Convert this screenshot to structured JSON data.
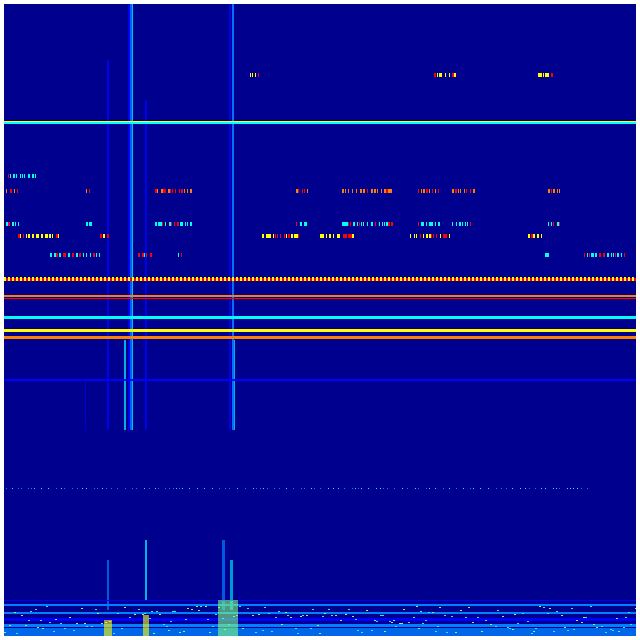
{
  "image": {
    "kind": "heatmap",
    "colormap": "jet",
    "colors": {
      "background": "#00008f",
      "blue": "#0000ff",
      "light_blue": "#0080ff",
      "cyan": "#00ffff",
      "green": "#80ff80",
      "yellow": "#ffff00",
      "orange": "#ff8000",
      "red": "#ff0000",
      "dark_red": "#800000"
    }
  }
}
